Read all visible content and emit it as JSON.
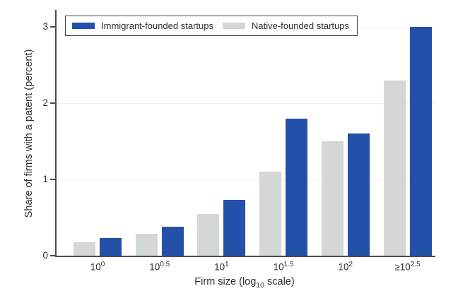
{
  "chart_data": {
    "type": "bar",
    "title": "",
    "ylabel": "Share of firms with a patent (percent)",
    "xlabel": {
      "pre": "Firm size (log",
      "sub": "10",
      "post": " scale)"
    },
    "ylim": [
      0,
      3
    ],
    "yticks": [
      0,
      1,
      2,
      3
    ],
    "grid": "horizontal-light",
    "legend_position": "top-left-inside",
    "categories": [
      {
        "prefix": "",
        "base": "10",
        "exponent": "0"
      },
      {
        "prefix": "",
        "base": "10",
        "exponent": "0.5"
      },
      {
        "prefix": "",
        "base": "10",
        "exponent": "1"
      },
      {
        "prefix": "",
        "base": "10",
        "exponent": "1.5"
      },
      {
        "prefix": "",
        "base": "10",
        "exponent": "2"
      },
      {
        "prefix": "≥",
        "base": "10",
        "exponent": "2.5"
      }
    ],
    "series": [
      {
        "key": "immigrant",
        "name": "Immigrant-founded startups",
        "color": "#2350a8",
        "values": [
          0.23,
          0.38,
          0.73,
          1.8,
          1.6,
          3.0
        ]
      },
      {
        "key": "native",
        "name": "Native-founded startups",
        "color": "#d4d8d5",
        "values": [
          0.18,
          0.29,
          0.55,
          1.1,
          1.5,
          2.3
        ]
      }
    ],
    "bar_order": [
      1,
      0
    ]
  }
}
